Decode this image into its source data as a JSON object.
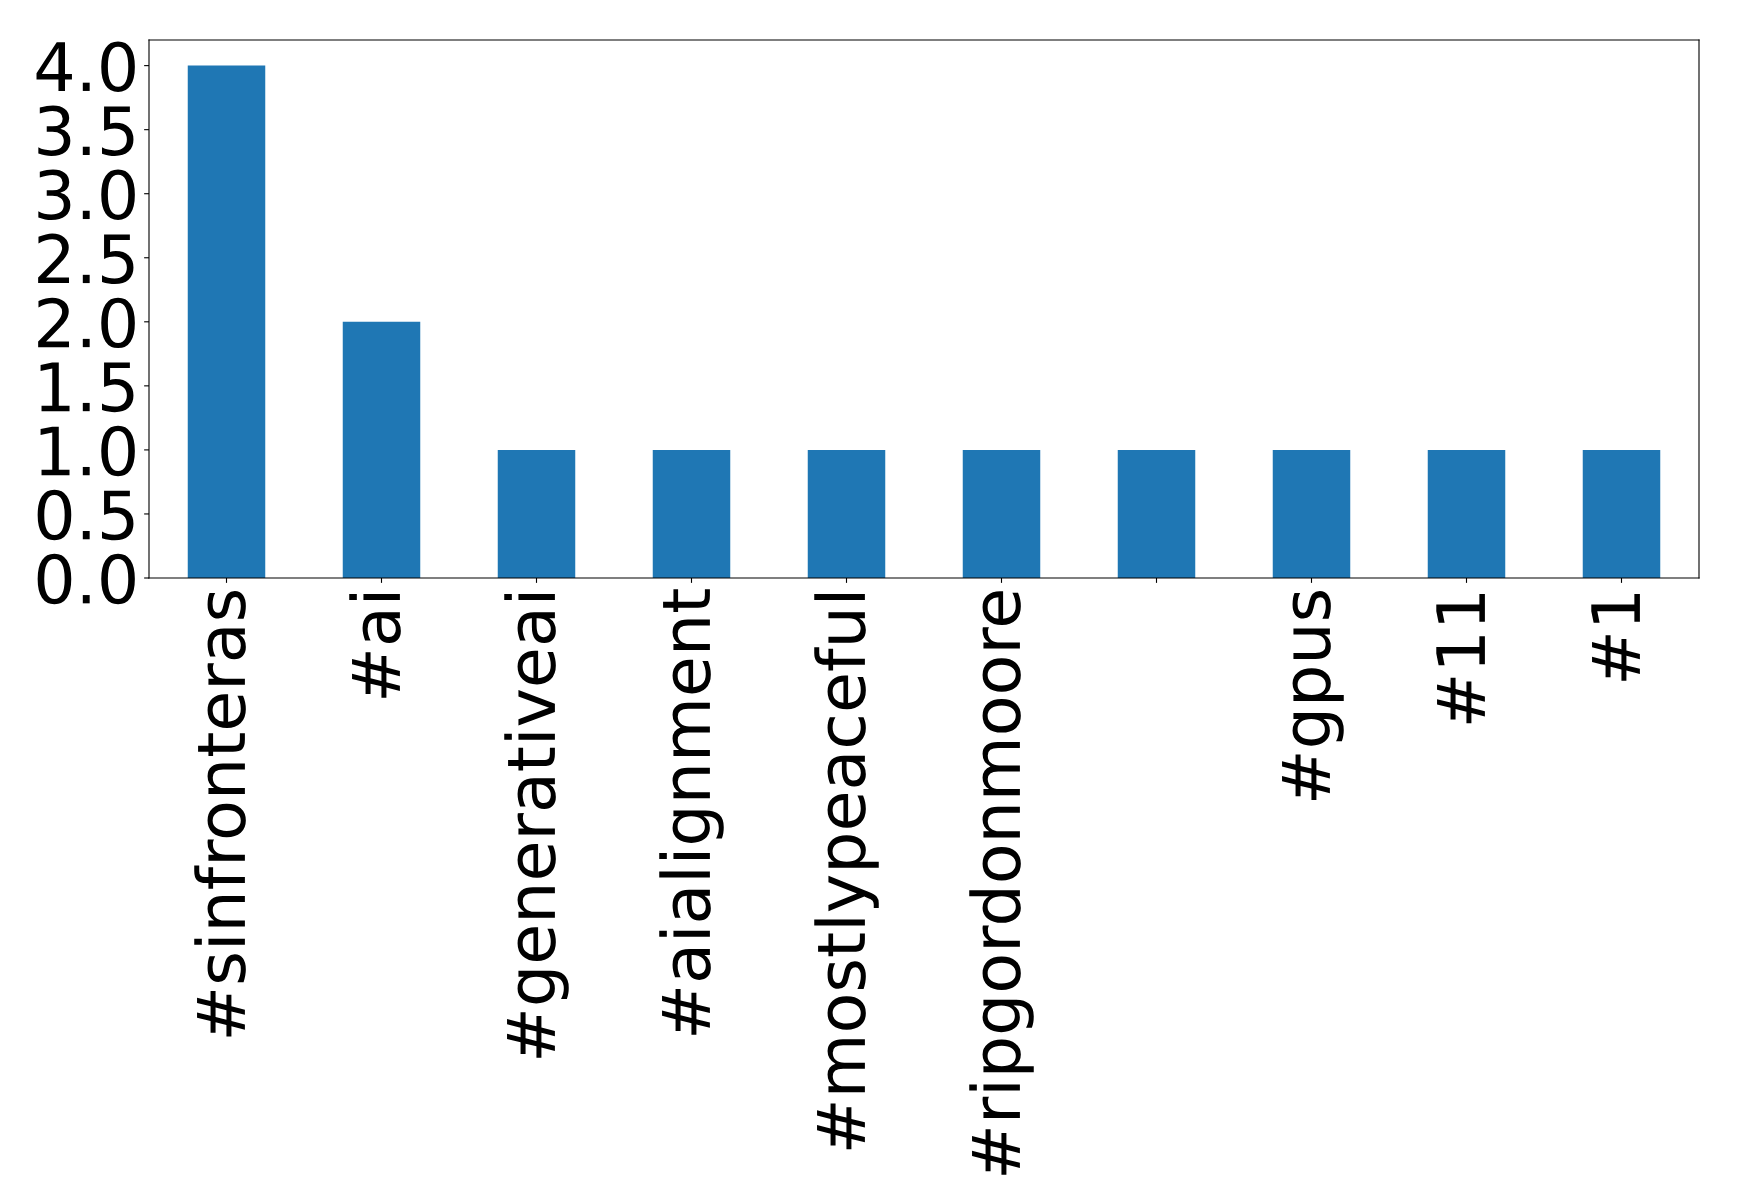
{
  "chart_data": {
    "type": "bar",
    "categories": [
      "#sinfronteras",
      "#ai",
      "#generativeai",
      "#aialignment",
      "#mostlypeaceful",
      "#ripgordonmoore",
      null,
      "#gpus",
      "#11",
      "#1"
    ],
    "values": [
      4,
      2,
      1,
      1,
      1,
      1,
      1,
      1,
      1,
      1
    ],
    "color": "#1f77b4",
    "ylim": [
      0,
      4.2
    ],
    "yticks": [
      {
        "value": 0,
        "label": "0.0"
      },
      {
        "value": 0.5,
        "label": "0.5"
      },
      {
        "value": 1,
        "label": "1.0"
      },
      {
        "value": 1.5,
        "label": "1.5"
      },
      {
        "value": 2,
        "label": "2.0"
      },
      {
        "value": 2.5,
        "label": "2.5"
      },
      {
        "value": 3,
        "label": "3.0"
      },
      {
        "value": 3.5,
        "label": "3.5"
      },
      {
        "value": 4,
        "label": "4.0"
      }
    ],
    "grid": false,
    "legend": false
  }
}
